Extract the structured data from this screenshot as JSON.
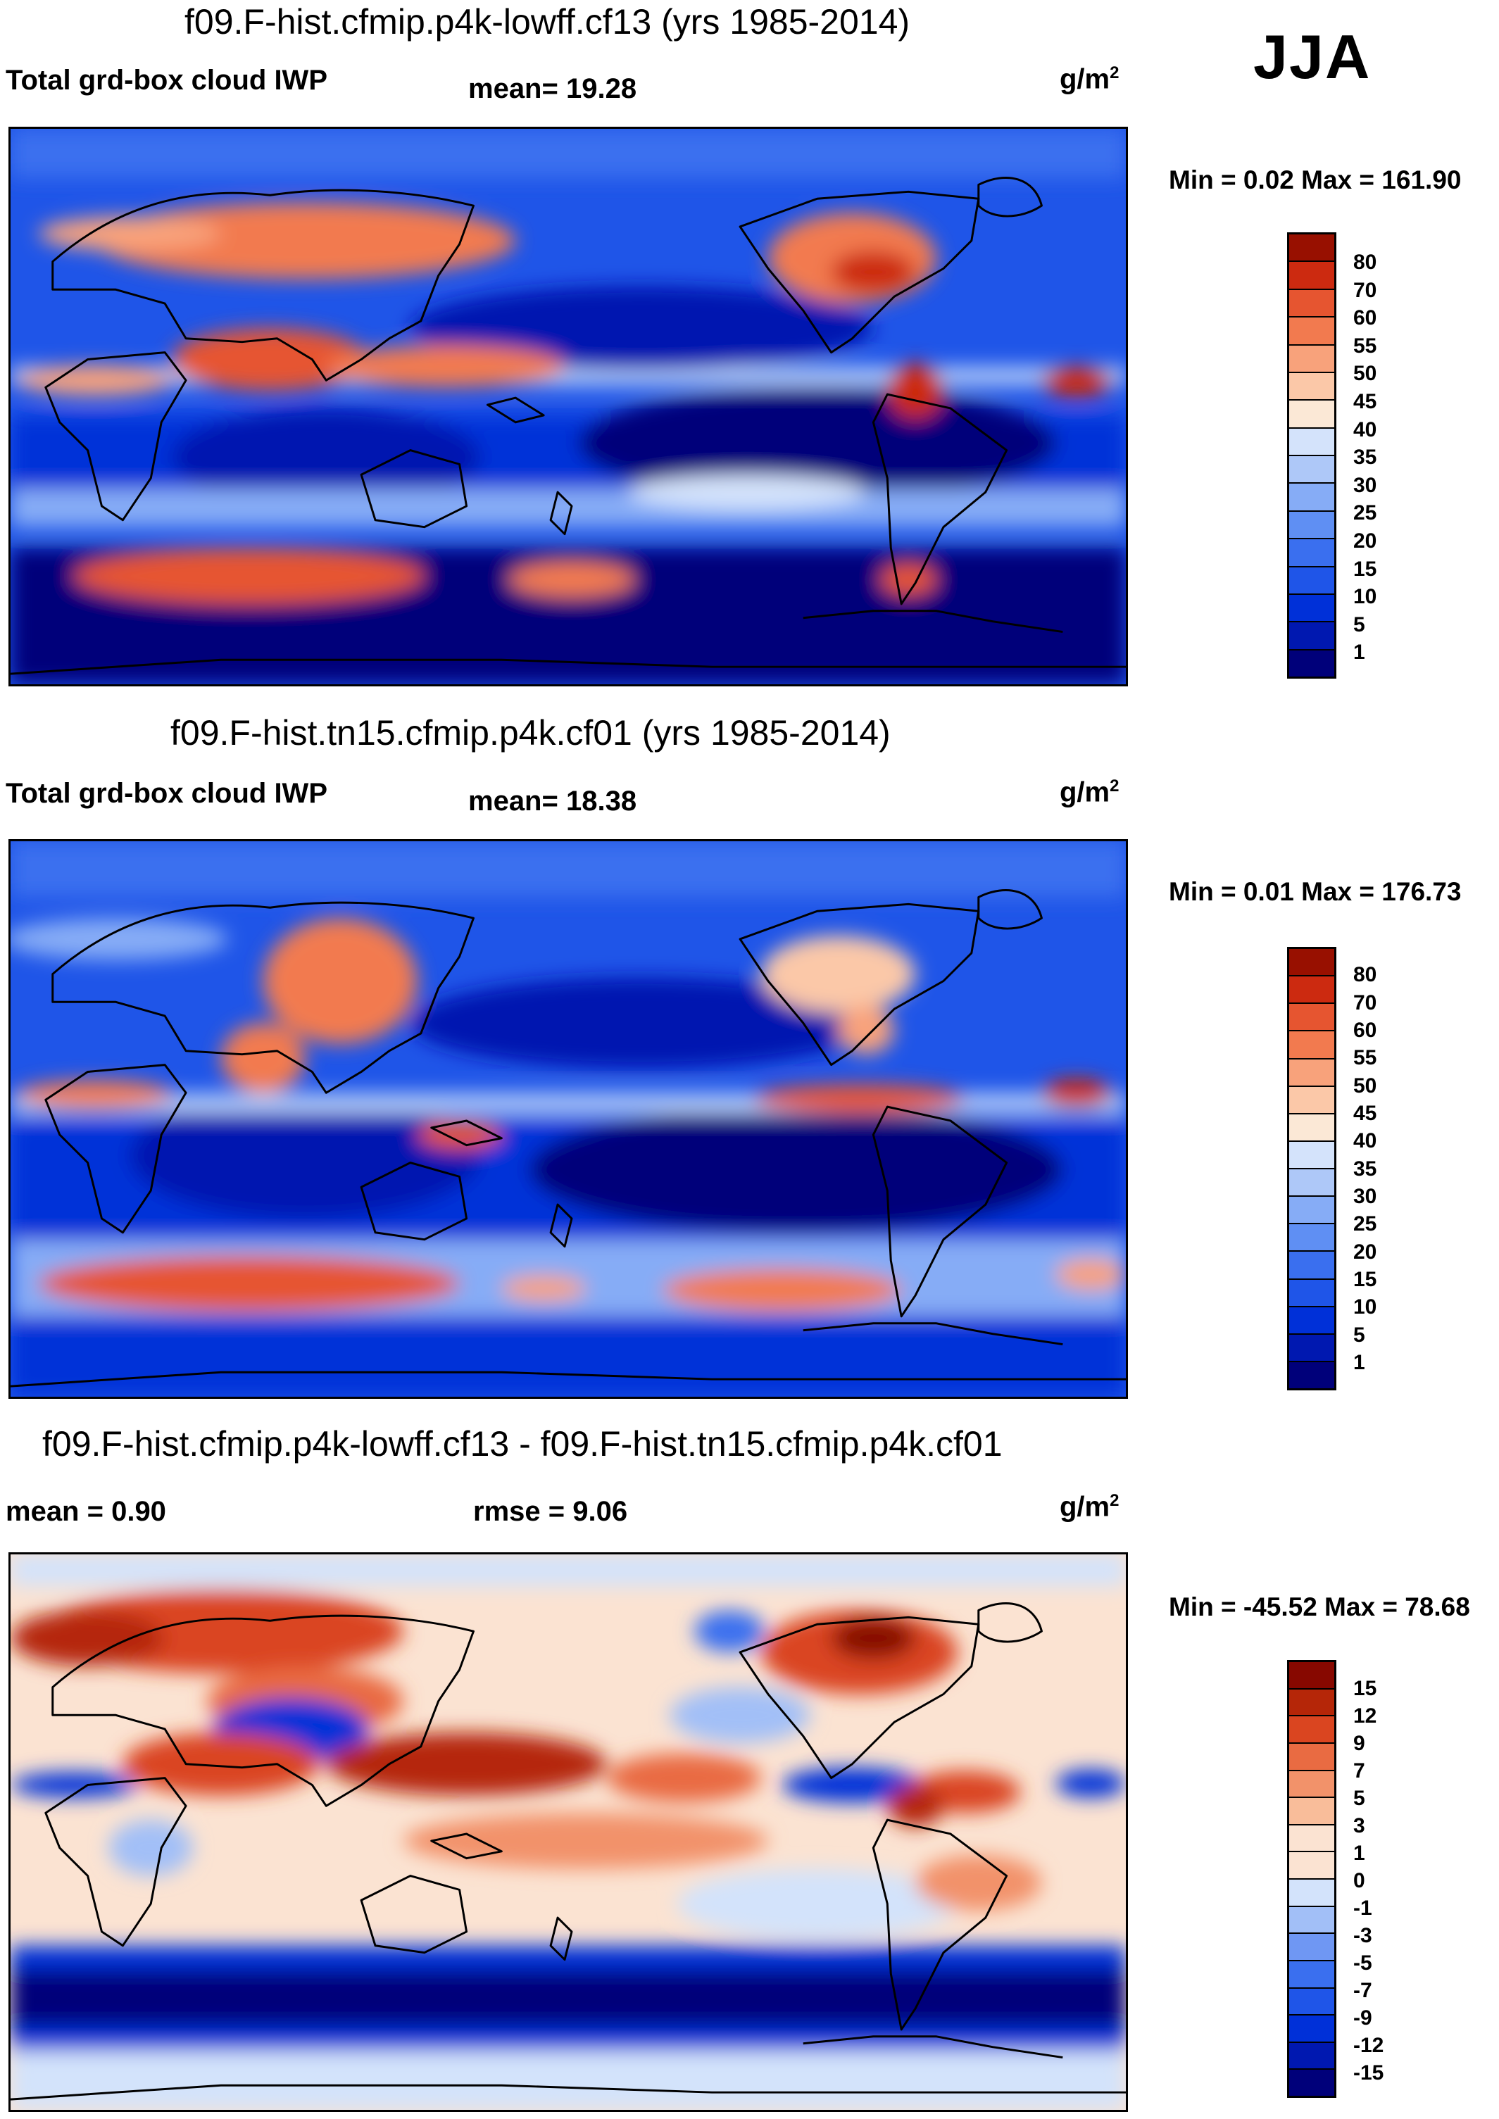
{
  "season": "JJA",
  "colors": {
    "abs": [
      "#00007a",
      "#0018b0",
      "#0030d8",
      "#1f55e8",
      "#3a6fef",
      "#5f8ff3",
      "#86acf6",
      "#aec8f8",
      "#d4e3fb",
      "#fbe8d6",
      "#fbc8a8",
      "#f8a27b",
      "#f27a4f",
      "#e65530",
      "#cc2a10",
      "#981000"
    ],
    "diff": [
      "#00007a",
      "#0018b0",
      "#0030d8",
      "#1f55e8",
      "#3a6fef",
      "#6f97f3",
      "#a2bff7",
      "#d3e3fb",
      "#fbe3d2",
      "#f9bd9a",
      "#f2926a",
      "#e96b42",
      "#da4520",
      "#b52608",
      "#870800"
    ]
  },
  "panels": [
    {
      "title": "f09.F-hist.cfmip.p4k-lowff.cf13 (yrs 1985-2014)",
      "left_label": "Total grd-box cloud IWP",
      "center_label": "mean=  19.28",
      "units": "g/m",
      "units_sup": "2",
      "minmax": "Min =   0.02 Max = 161.90",
      "colorbar_labels": [
        "80",
        "70",
        "60",
        "55",
        "50",
        "45",
        "40",
        "35",
        "30",
        "25",
        "20",
        "15",
        "10",
        "5",
        "1"
      ]
    },
    {
      "title": "f09.F-hist.tn15.cfmip.p4k.cf01 (yrs 1985-2014)",
      "left_label": "Total grd-box cloud IWP",
      "center_label": "mean=  18.38",
      "units": "g/m",
      "units_sup": "2",
      "minmax": "Min =   0.01 Max = 176.73",
      "colorbar_labels": [
        "80",
        "70",
        "60",
        "55",
        "50",
        "45",
        "40",
        "35",
        "30",
        "25",
        "20",
        "15",
        "10",
        "5",
        "1"
      ]
    },
    {
      "title": "f09.F-hist.cfmip.p4k-lowff.cf13 - f09.F-hist.tn15.cfmip.p4k.cf01",
      "left_label": "mean =   0.90",
      "center_label": "rmse =    9.06",
      "units": "g/m",
      "units_sup": "2",
      "minmax": "Min = -45.52 Max =  78.68",
      "colorbar_labels": [
        "15",
        "12",
        "9",
        "7",
        "5",
        "3",
        "1",
        "0",
        "-1",
        "-3",
        "-5",
        "-7",
        "-9",
        "-12",
        "-15"
      ]
    }
  ]
}
